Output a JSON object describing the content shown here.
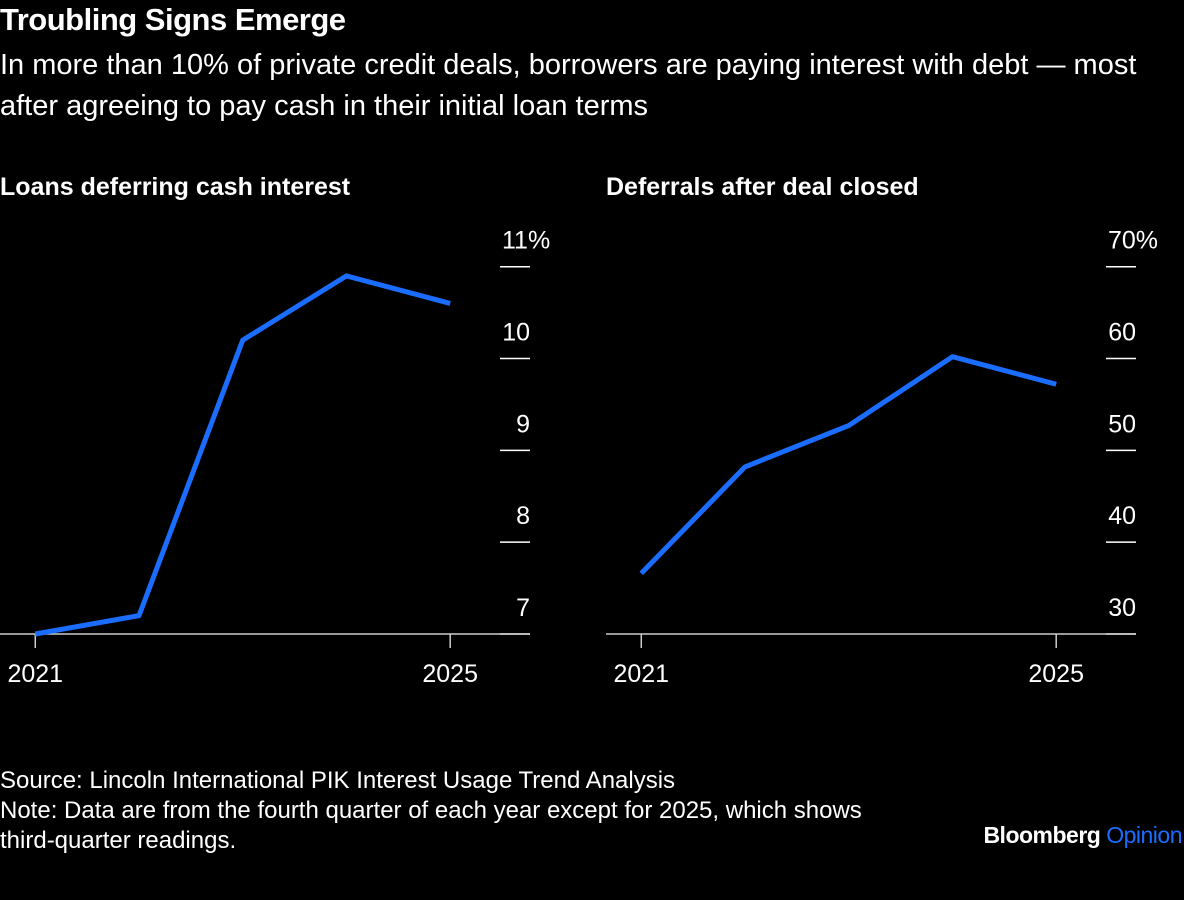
{
  "title": "Troubling Signs Emerge",
  "subtitle": "In more than 10% of private credit deals, borrowers are paying interest with debt — most after agreeing to pay cash in their initial loan terms",
  "source": "Source: Lincoln International PIK Interest Usage Trend Analysis",
  "note": "Note: Data are from the fourth quarter of each year except for 2025, which shows third-quarter readings.",
  "brand": "Bloomberg",
  "brand_section": "Opinion",
  "chart_data": [
    {
      "type": "line",
      "title": "Loans deferring cash interest",
      "x": [
        2021,
        2022,
        2023,
        2024,
        2025
      ],
      "series": [
        {
          "color": "#1a6dff",
          "values": [
            7.0,
            7.2,
            10.2,
            10.9,
            10.6
          ]
        }
      ],
      "xlim": [
        2020.66,
        2025.75
      ],
      "xticks": [
        2021,
        2025
      ],
      "ylim": [
        7,
        11.4
      ],
      "yticks": [
        7,
        8,
        9,
        10,
        {
          "value": 11,
          "label": "11%"
        }
      ]
    },
    {
      "type": "line",
      "title": "Deferrals after deal closed",
      "x": [
        2021,
        2022,
        2023,
        2024,
        2025
      ],
      "series": [
        {
          "color": "#1a6dff",
          "values": [
            36.6,
            48.2,
            52.7,
            60.2,
            57.2
          ]
        }
      ],
      "xlim": [
        2020.66,
        2025.75
      ],
      "xticks": [
        2021,
        2025
      ],
      "ylim": [
        30,
        74
      ],
      "yticks": [
        30,
        40,
        50,
        60,
        {
          "value": 70,
          "label": "70%"
        }
      ]
    }
  ]
}
